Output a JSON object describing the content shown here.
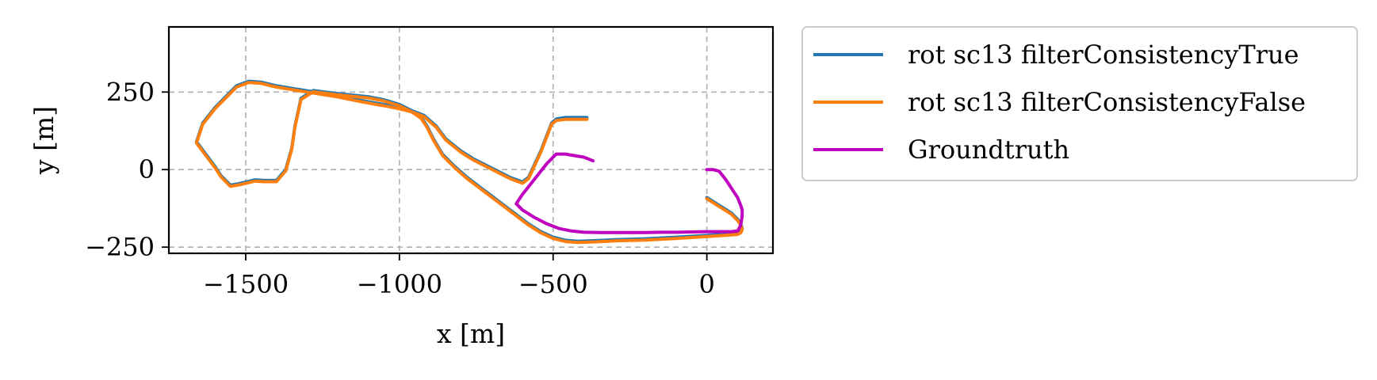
{
  "chart_data": {
    "type": "line",
    "title": "",
    "xlabel": "x [m]",
    "ylabel": "y [m]",
    "xlim": [
      -1750,
      215
    ],
    "ylim": [
      -270,
      460
    ],
    "xticks": [
      -1500,
      -1000,
      -500,
      0
    ],
    "xtick_labels": [
      "−1500",
      "−1000",
      "−500",
      "0"
    ],
    "yticks": [
      -250,
      0,
      250
    ],
    "ytick_labels": [
      "−250",
      "0",
      "250"
    ],
    "grid": true,
    "legend_position": "outside-right",
    "series": [
      {
        "name": "rot sc13 filterConsistencyTrue",
        "color": "#1f77b4",
        "x": [
          -390,
          -430,
          -460,
          -490,
          -505,
          -540,
          -580,
          -600,
          -640,
          -700,
          -760,
          -800,
          -850,
          -880,
          -920,
          -960,
          -1000,
          -1040,
          -1080,
          -1120,
          -1160,
          -1200,
          -1250,
          -1300,
          -1350,
          -1400,
          -1450,
          -1490,
          -1530,
          -1560,
          -1600,
          -1640,
          -1660,
          -1630,
          -1600,
          -1580,
          -1550,
          -1520,
          -1490,
          -1470,
          -1440,
          -1400,
          -1370,
          -1350,
          -1340,
          -1320,
          -1280,
          -1240,
          -1200,
          -1150,
          -1100,
          -1050,
          -1000,
          -960,
          -930,
          -910,
          -890,
          -860,
          -820,
          -780,
          -740,
          -700,
          -660,
          -620,
          -580,
          -540,
          -500,
          -460,
          -420,
          -360,
          -300,
          -200,
          -100,
          0,
          60,
          100,
          110,
          115,
          110,
          100,
          80,
          40,
          0
        ],
        "y": [
          168,
          168,
          168,
          163,
          150,
          60,
          -25,
          -40,
          -25,
          5,
          35,
          60,
          100,
          140,
          175,
          190,
          200,
          208,
          215,
          222,
          230,
          238,
          246,
          254,
          262,
          270,
          282,
          285,
          270,
          240,
          200,
          150,
          90,
          50,
          10,
          -20,
          -50,
          -45,
          -38,
          -33,
          -35,
          -35,
          0,
          70,
          140,
          230,
          255,
          250,
          245,
          240,
          235,
          225,
          210,
          190,
          170,
          140,
          100,
          50,
          10,
          -25,
          -55,
          -85,
          -115,
          -145,
          -175,
          -200,
          -218,
          -228,
          -231,
          -229,
          -226,
          -223,
          -218,
          -212,
          -208,
          -205,
          -200,
          -190,
          -175,
          -160,
          -140,
          -115,
          -90
        ]
      },
      {
        "name": "rot sc13 filterConsistencyFalse",
        "color": "#ff7f0e",
        "x": [
          -390,
          -430,
          -460,
          -490,
          -505,
          -540,
          -580,
          -600,
          -640,
          -700,
          -760,
          -800,
          -850,
          -880,
          -920,
          -960,
          -1000,
          -1040,
          -1080,
          -1120,
          -1160,
          -1200,
          -1250,
          -1300,
          -1350,
          -1400,
          -1450,
          -1490,
          -1530,
          -1560,
          -1600,
          -1640,
          -1660,
          -1630,
          -1600,
          -1580,
          -1550,
          -1520,
          -1490,
          -1470,
          -1440,
          -1400,
          -1370,
          -1350,
          -1340,
          -1320,
          -1280,
          -1240,
          -1200,
          -1150,
          -1100,
          -1050,
          -1000,
          -960,
          -930,
          -910,
          -890,
          -860,
          -820,
          -780,
          -740,
          -700,
          -660,
          -620,
          -580,
          -540,
          -500,
          -460,
          -420,
          -360,
          -300,
          -200,
          -100,
          0,
          60,
          100,
          110,
          115,
          110,
          100,
          80,
          40,
          0
        ],
        "y": [
          162,
          162,
          162,
          158,
          146,
          56,
          -29,
          -44,
          -29,
          1,
          31,
          56,
          96,
          136,
          171,
          186,
          196,
          204,
          211,
          218,
          226,
          234,
          242,
          250,
          258,
          266,
          278,
          281,
          266,
          236,
          196,
          146,
          86,
          46,
          6,
          -24,
          -54,
          -49,
          -42,
          -37,
          -39,
          -39,
          -4,
          66,
          136,
          226,
          251,
          246,
          241,
          236,
          231,
          221,
          206,
          186,
          166,
          136,
          96,
          46,
          6,
          -29,
          -59,
          -89,
          -119,
          -149,
          -179,
          -204,
          -222,
          -232,
          -235,
          -233,
          -230,
          -227,
          -222,
          -216,
          -212,
          -209,
          -204,
          -194,
          -179,
          -164,
          -144,
          -119,
          -94
        ]
      },
      {
        "name": "Groundtruth",
        "color": "#bf00bf",
        "x": [
          -370,
          -400,
          -430,
          -460,
          -490,
          -520,
          -560,
          -600,
          -620,
          -600,
          -560,
          -520,
          -480,
          -440,
          -400,
          -340,
          -300,
          -250,
          -200,
          -150,
          -100,
          -50,
          0,
          50,
          80,
          100,
          110,
          115,
          115,
          110,
          100,
          80,
          60,
          40,
          20,
          0
        ],
        "y": [
          28,
          40,
          45,
          50,
          50,
          20,
          -30,
          -80,
          -110,
          -130,
          -155,
          -175,
          -190,
          -198,
          -202,
          -203,
          -203,
          -203,
          -203,
          -202,
          -202,
          -201,
          -200,
          -200,
          -200,
          -198,
          -180,
          -150,
          -130,
          -115,
          -90,
          -60,
          -30,
          -5,
          0,
          0
        ]
      }
    ]
  }
}
